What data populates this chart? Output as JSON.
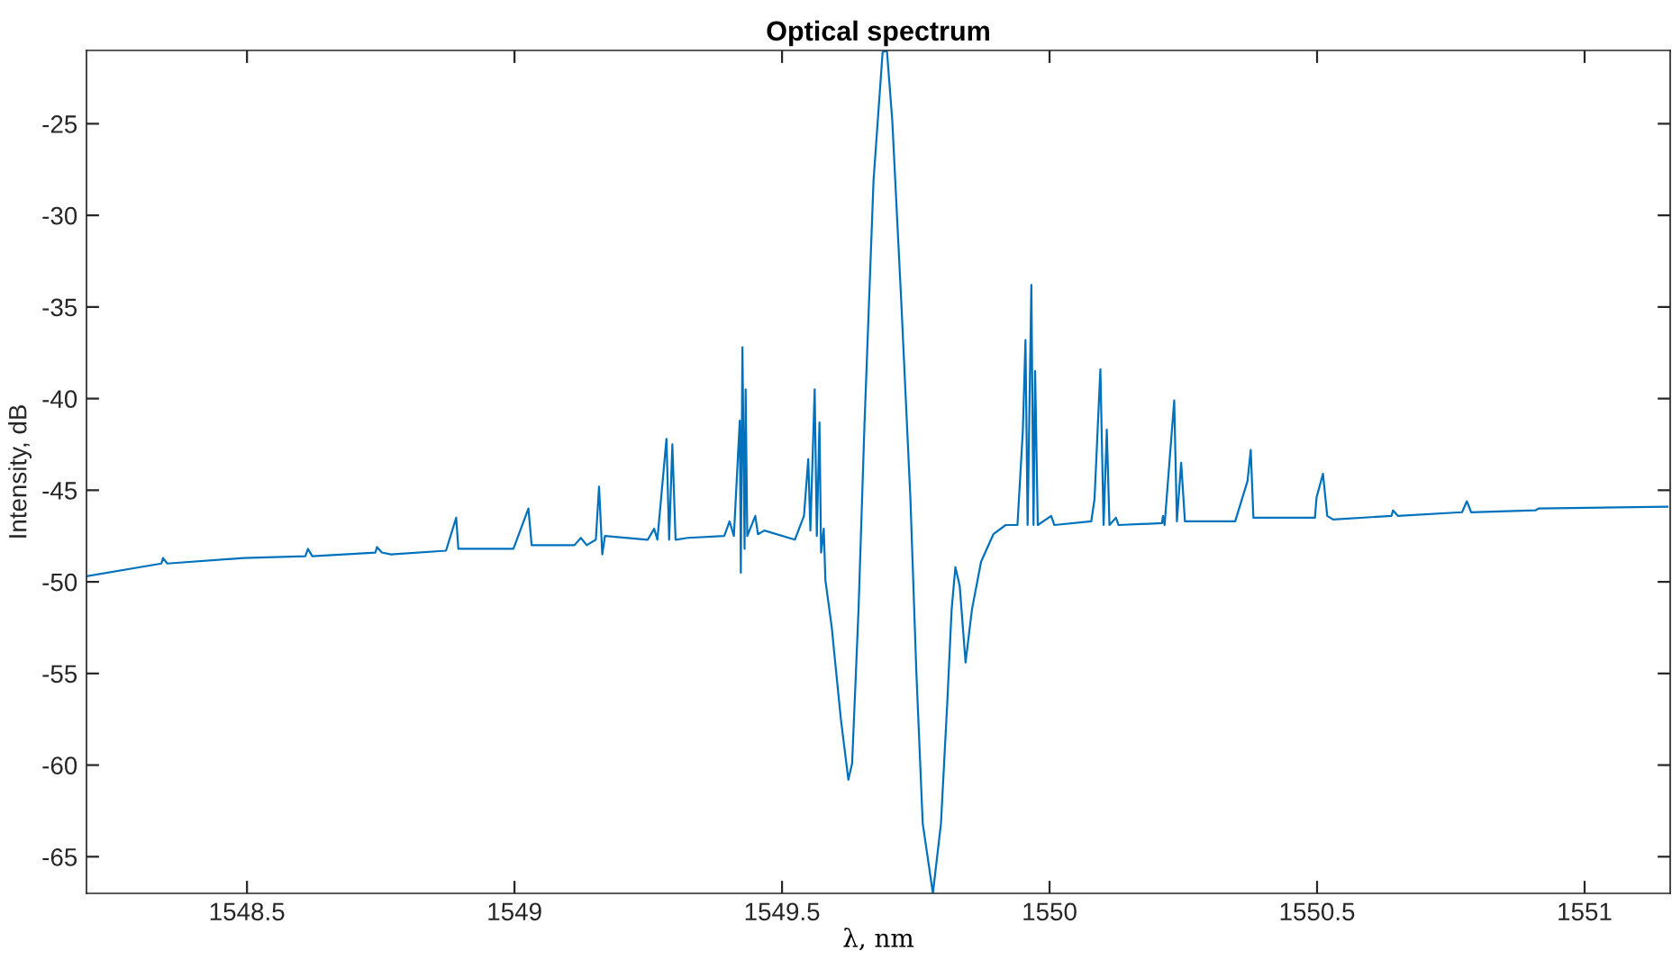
{
  "chart_data": {
    "type": "line",
    "title": "Optical spectrum",
    "xlabel": "λ, nm",
    "ylabel": "Intensity, dB",
    "xlim": [
      1548.2,
      1551.16
    ],
    "ylim": [
      -67,
      -21
    ],
    "xticks": [
      1548.5,
      1549,
      1549.5,
      1550,
      1550.5,
      1551
    ],
    "yticks": [
      -65,
      -60,
      -55,
      -50,
      -45,
      -40,
      -35,
      -30,
      -25
    ],
    "grid": false,
    "legend": false,
    "series": [
      {
        "color": "#0072bd",
        "x": [
          1548.2,
          1548.34,
          1548.343,
          1548.351,
          1548.494,
          1548.609,
          1548.614,
          1548.622,
          1548.74,
          1548.743,
          1548.752,
          1548.769,
          1548.872,
          1548.891,
          1548.895,
          1548.998,
          1549.026,
          1549.032,
          1549.112,
          1549.124,
          1549.135,
          1549.152,
          1549.158,
          1549.164,
          1549.169,
          1549.249,
          1549.261,
          1549.267,
          1549.284,
          1549.289,
          1549.295,
          1549.301,
          1549.324,
          1549.392,
          1549.402,
          1549.41,
          1549.421,
          1549.423,
          1549.426,
          1549.43,
          1549.432,
          1549.435,
          1549.45,
          1549.455,
          1549.467,
          1549.524,
          1549.541,
          1549.549,
          1549.553,
          1549.561,
          1549.565,
          1549.57,
          1549.573,
          1549.578,
          1549.581,
          1549.593,
          1549.598,
          1549.61,
          1549.624,
          1549.631,
          1549.643,
          1549.654,
          1549.671,
          1549.688,
          1549.696,
          1549.706,
          1549.723,
          1549.74,
          1549.751,
          1549.763,
          1549.782,
          1549.797,
          1549.809,
          1549.817,
          1549.824,
          1549.832,
          1549.843,
          1549.855,
          1549.872,
          1549.895,
          1549.918,
          1549.94,
          1549.95,
          1549.955,
          1549.959,
          1549.966,
          1549.97,
          1549.973,
          1549.978,
          1550.003,
          1550.009,
          1550.078,
          1550.084,
          1550.095,
          1550.101,
          1550.107,
          1550.112,
          1550.124,
          1550.129,
          1550.21,
          1550.212,
          1550.215,
          1550.233,
          1550.238,
          1550.246,
          1550.253,
          1550.347,
          1550.37,
          1550.376,
          1550.381,
          1550.496,
          1550.499,
          1550.511,
          1550.519,
          1550.53,
          1550.639,
          1550.642,
          1550.651,
          1550.771,
          1550.78,
          1550.788,
          1550.908,
          1550.914,
          1551.155
        ],
        "values": [
          -49.7,
          -49.0,
          -48.7,
          -49.0,
          -48.7,
          -48.6,
          -48.2,
          -48.6,
          -48.4,
          -48.1,
          -48.4,
          -48.5,
          -48.3,
          -46.5,
          -48.2,
          -48.2,
          -46.0,
          -48.0,
          -48.0,
          -47.6,
          -48.0,
          -47.7,
          -44.8,
          -48.5,
          -47.5,
          -47.7,
          -47.1,
          -47.7,
          -42.2,
          -47.7,
          -42.5,
          -47.7,
          -47.6,
          -47.5,
          -46.7,
          -47.5,
          -41.2,
          -49.5,
          -37.2,
          -48.2,
          -39.5,
          -47.5,
          -46.4,
          -47.4,
          -47.2,
          -47.7,
          -46.4,
          -43.3,
          -47.2,
          -39.5,
          -47.5,
          -41.3,
          -48.4,
          -47.1,
          -49.9,
          -52.5,
          -54.0,
          -57.5,
          -60.8,
          -59.9,
          -51.5,
          -41.5,
          -28.1,
          -21.1,
          -21.0,
          -24.8,
          -34.8,
          -45.5,
          -54.9,
          -63.2,
          -67.0,
          -63.2,
          -56.5,
          -51.5,
          -49.2,
          -50.2,
          -54.4,
          -51.5,
          -48.9,
          -47.4,
          -46.9,
          -46.9,
          -41.8,
          -36.8,
          -46.9,
          -33.8,
          -46.9,
          -38.5,
          -46.9,
          -46.4,
          -46.9,
          -46.7,
          -45.5,
          -38.4,
          -46.9,
          -41.7,
          -46.9,
          -46.5,
          -46.9,
          -46.8,
          -46.4,
          -46.9,
          -40.1,
          -46.7,
          -43.5,
          -46.7,
          -46.7,
          -44.5,
          -42.8,
          -46.5,
          -46.5,
          -45.4,
          -44.1,
          -46.4,
          -46.6,
          -46.4,
          -46.1,
          -46.4,
          -46.2,
          -45.6,
          -46.2,
          -46.1,
          -46.0,
          -45.9
        ]
      }
    ]
  }
}
